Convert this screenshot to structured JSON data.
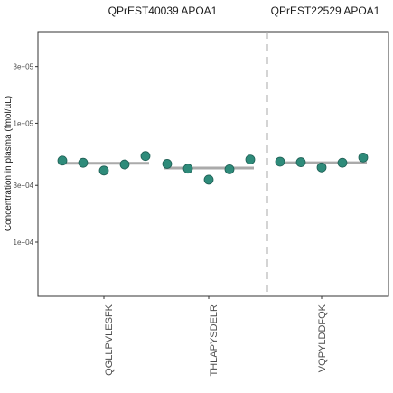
{
  "chart_data": {
    "type": "scatter",
    "facets": [
      {
        "title": "QPrEST40039 APOA1",
        "categories": [
          "QGLLPVLESFK",
          "THLAPYSDELR"
        ]
      },
      {
        "title": "QPrEST22529 APOA1",
        "categories": [
          "VQPYLDDFQK"
        ]
      }
    ],
    "ylabel": "Concentration in plasma (fmol/µL)",
    "y_scale": "log",
    "ylim": [
      3500,
      590000
    ],
    "y_ticks": [
      10000,
      30000,
      100000,
      300000
    ],
    "y_tick_labels": [
      "1e+04",
      "3e+04",
      "1e+05",
      "3e+05"
    ],
    "series": [
      {
        "category": "QGLLPVLESFK",
        "values": [
          48500,
          46500,
          40000,
          45000,
          53000
        ],
        "median": 46000
      },
      {
        "category": "THLAPYSDELR",
        "values": [
          45500,
          41500,
          33500,
          41000,
          49500
        ],
        "median": 42000
      },
      {
        "category": "VQPYLDDFQK",
        "values": [
          47500,
          47000,
          42500,
          46500,
          51500
        ],
        "median": 46500
      }
    ],
    "colors": {
      "point": "#2e8b7a",
      "median": "#aaaaaa",
      "divider": "#aaaaaa"
    },
    "grid": false
  }
}
